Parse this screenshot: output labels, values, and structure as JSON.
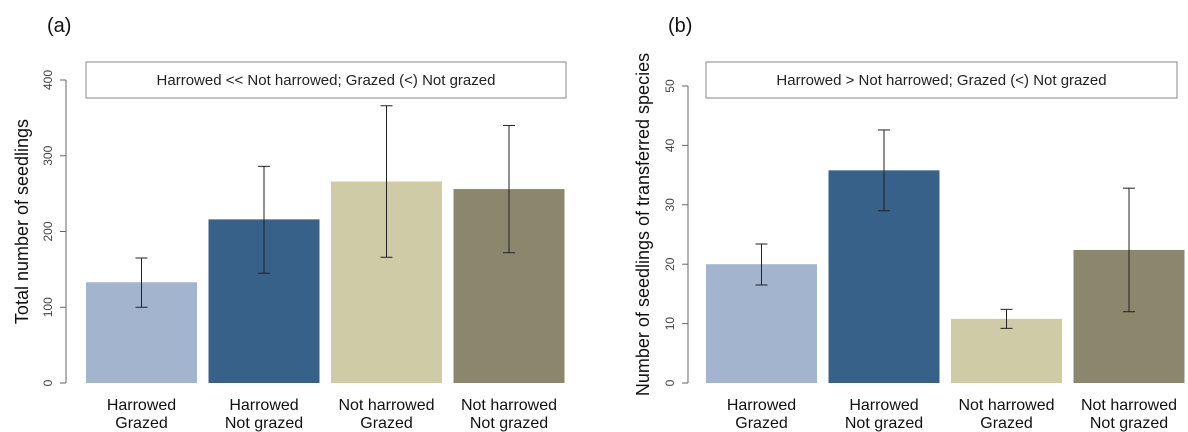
{
  "chart_data": [
    {
      "panel": "(a)",
      "type": "bar",
      "categories": [
        [
          "Harrowed",
          "Grazed"
        ],
        [
          "Harrowed",
          "Not grazed"
        ],
        [
          "Not harrowed",
          "Grazed"
        ],
        [
          "Not harrowed",
          "Not grazed"
        ]
      ],
      "values": [
        133,
        216,
        266,
        256
      ],
      "error_low": [
        100,
        145,
        166,
        172
      ],
      "error_high": [
        165,
        286,
        366,
        340
      ],
      "colors": [
        "#a3b4cf",
        "#376188",
        "#cfcba6",
        "#8a876d"
      ],
      "ylabel": "Total number of seedlings",
      "ylim": [
        0,
        400
      ],
      "yticks": [
        0,
        100,
        200,
        300,
        400
      ],
      "annotation": "Harrowed << Not harrowed; Grazed (<) Not grazed"
    },
    {
      "panel": "(b)",
      "type": "bar",
      "categories": [
        [
          "Harrowed",
          "Grazed"
        ],
        [
          "Harrowed",
          "Not grazed"
        ],
        [
          "Not harrowed",
          "Grazed"
        ],
        [
          "Not harrowed",
          "Not grazed"
        ]
      ],
      "values": [
        20,
        35.8,
        10.8,
        22.4
      ],
      "error_low": [
        16.5,
        29,
        9.2,
        12
      ],
      "error_high": [
        23.4,
        42.6,
        12.4,
        32.8
      ],
      "colors": [
        "#a3b4cf",
        "#376188",
        "#cfcba6",
        "#8a876d"
      ],
      "ylabel": "Number of seedlings of transferred species",
      "ylim": [
        0,
        50
      ],
      "yticks": [
        0,
        10,
        20,
        30,
        40,
        50
      ],
      "annotation": "Harrowed > Not harrowed; Grazed (<) Not grazed"
    }
  ]
}
